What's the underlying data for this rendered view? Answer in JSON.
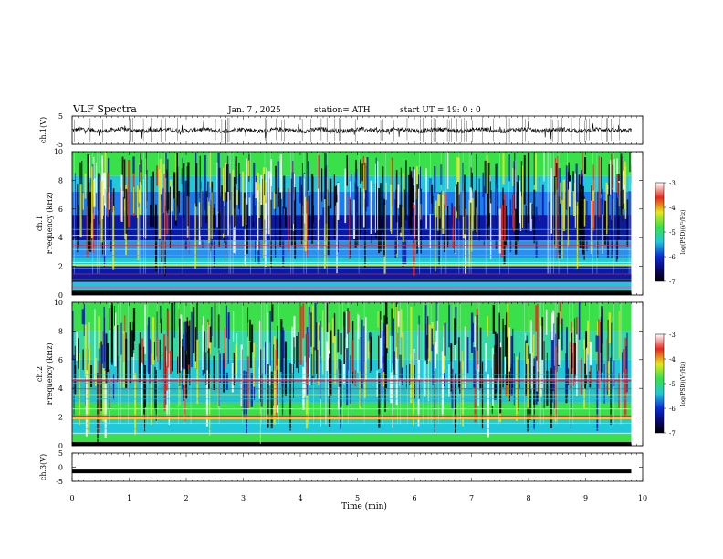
{
  "header": {
    "title": "VLF Spectra",
    "date": "Jan. 7 , 2025",
    "station": "station= ATH",
    "start": "start UT =  19: 0 : 0"
  },
  "chart_data": [
    {
      "type": "line",
      "panel": "ch1-waveform",
      "ylabel": "ch.1(V)",
      "ylim": [
        -5,
        5
      ],
      "yticks": [
        5,
        -5
      ],
      "xlim": [
        0,
        10
      ],
      "description_level": "noisy trace centered near 0 V"
    },
    {
      "type": "heatmap",
      "panel": "ch1-spectrogram",
      "ylabel_top": "ch.1",
      "ylabel": "Frequency (kHz)",
      "ylim": [
        0,
        10
      ],
      "yticks": [
        0,
        2,
        4,
        6,
        8,
        10
      ],
      "xlim": [
        0,
        10
      ],
      "colorbar": {
        "label": "log(PSD)(V²/Hz)",
        "range": [
          -7,
          -3
        ],
        "ticks": [
          "-3",
          "-4",
          "-5",
          "-6",
          "-7"
        ]
      }
    },
    {
      "type": "heatmap",
      "panel": "ch2-spectrogram",
      "ylabel_top": "ch.2",
      "ylabel": "Frequency (kHz)",
      "ylim": [
        0,
        10
      ],
      "yticks": [
        0,
        2,
        4,
        6,
        8,
        10
      ],
      "xlim": [
        0,
        10
      ],
      "colorbar": {
        "label": "log(PSD)(V²/Hz)",
        "range": [
          -7,
          -3
        ],
        "ticks": [
          "-3",
          "-4",
          "-5",
          "-6",
          "-7"
        ]
      }
    },
    {
      "type": "line",
      "panel": "ch3-waveform",
      "ylabel": "ch.3(V)",
      "ylim": [
        -5,
        5
      ],
      "yticks": [
        5,
        0,
        -5
      ],
      "xlim": [
        0,
        10
      ],
      "description_level": "flat trace near -1.5 V"
    }
  ],
  "xaxis": {
    "label": "Time (min)",
    "ticks": [
      "0",
      "1",
      "2",
      "3",
      "4",
      "5",
      "6",
      "7",
      "8",
      "9",
      "10"
    ]
  },
  "colors": {
    "deep_blue": "#0a1aa8",
    "cyan": "#1fc9d8",
    "green": "#39e04a",
    "yellow": "#e6e81a",
    "red": "#e8281c",
    "black": "#000000"
  }
}
